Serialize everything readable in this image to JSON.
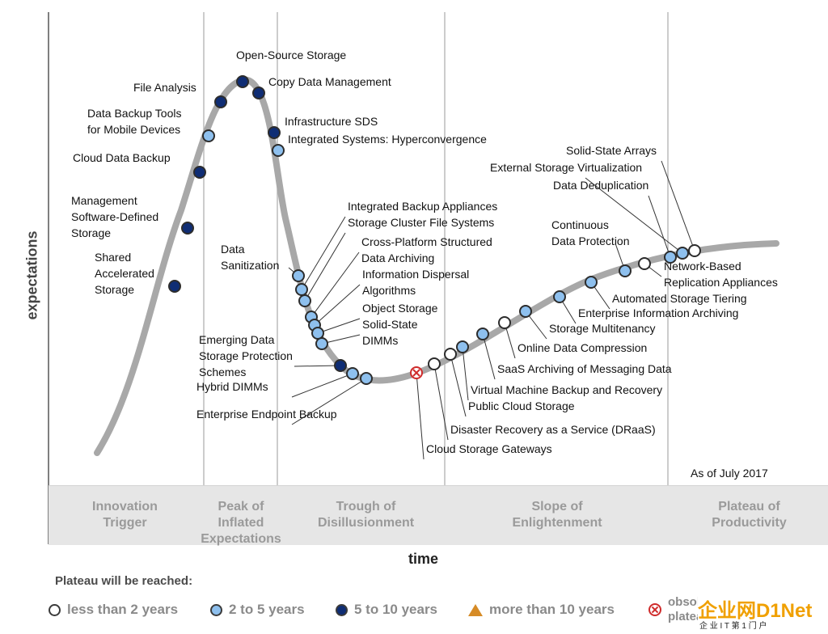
{
  "phases": [
    "Innovation\nTrigger",
    "Peak of\nInflated\nExpectations",
    "Trough of\nDisillusionment",
    "Slope of\nEnlightenment",
    "Plateau of\nProductivity"
  ],
  "axes": {
    "x": "time",
    "y": "expectations"
  },
  "as_of": "As of July 2017",
  "legend": {
    "title": "Plateau will be reached:",
    "items": [
      {
        "label": "less than 2 years",
        "kind": "white"
      },
      {
        "label": "2 to 5 years",
        "kind": "light"
      },
      {
        "label": "5 to 10 years",
        "kind": "dark"
      },
      {
        "label": "more than 10 years",
        "kind": "triangle"
      },
      {
        "label": "obsolete before plateau",
        "kind": "obsolete"
      }
    ]
  },
  "colors": {
    "white": "#ffffff",
    "light": "#8ec0ee",
    "dark": "#0f2d74",
    "curve": "#a8a8a8",
    "text": "#111111",
    "phase": "#e6e6e6"
  },
  "points": [
    {
      "id": "shared-accelerated-storage",
      "label": "Shared\nAccelerated\nStorage",
      "status": "dark"
    },
    {
      "id": "management-sds",
      "label": "Management\nSoftware-Defined\nStorage",
      "status": "dark"
    },
    {
      "id": "cloud-data-backup",
      "label": "Cloud Data Backup",
      "status": "dark"
    },
    {
      "id": "data-backup-tools",
      "label": "Data Backup Tools\nfor Mobile Devices",
      "status": "light"
    },
    {
      "id": "file-analysis",
      "label": "File Analysis",
      "status": "dark"
    },
    {
      "id": "open-source-storage",
      "label": "Open-Source Storage",
      "status": "dark"
    },
    {
      "id": "copy-data-management",
      "label": "Copy Data Management",
      "status": "dark"
    },
    {
      "id": "infrastructure-sds",
      "label": "Infrastructure SDS",
      "status": "dark"
    },
    {
      "id": "integrated-systems",
      "label": "Integrated Systems: Hyperconvergence",
      "status": "light"
    },
    {
      "id": "data-sanitization",
      "label": "Data\nSanitization",
      "status": "light"
    },
    {
      "id": "integrated-backup-appliances",
      "label": "Integrated Backup Appliances",
      "status": "light"
    },
    {
      "id": "storage-cluster-file-systems",
      "label": "Storage Cluster File Systems",
      "status": "light"
    },
    {
      "id": "cross-platform-structured",
      "label": "Cross-Platform Structured\nData Archiving",
      "status": "light"
    },
    {
      "id": "information-dispersal",
      "label": "Information Dispersal\nAlgorithms",
      "status": "light"
    },
    {
      "id": "object-storage",
      "label": "Object Storage",
      "status": "light"
    },
    {
      "id": "solid-state-dimms",
      "label": "Solid-State\nDIMMs",
      "status": "light"
    },
    {
      "id": "emerging-data-storage-protection",
      "label": "Emerging Data\nStorage Protection\nSchemes",
      "status": "dark"
    },
    {
      "id": "hybrid-dimms",
      "label": "Hybrid DIMMs",
      "status": "light"
    },
    {
      "id": "enterprise-endpoint-backup",
      "label": "Enterprise Endpoint Backup",
      "status": "light"
    },
    {
      "id": "cloud-storage-gateways",
      "label": "Cloud Storage Gateways",
      "status": "obsolete"
    },
    {
      "id": "draas",
      "label": "Disaster Recovery as a Service (DRaaS)",
      "status": "white"
    },
    {
      "id": "public-cloud-storage",
      "label": "Public Cloud Storage",
      "status": "white"
    },
    {
      "id": "vm-backup-recovery",
      "label": "Virtual Machine Backup and Recovery",
      "status": "light"
    },
    {
      "id": "saas-archiving",
      "label": "SaaS Archiving of Messaging Data",
      "status": "light"
    },
    {
      "id": "online-data-compression",
      "label": "Online Data Compression",
      "status": "white"
    },
    {
      "id": "storage-multitenancy",
      "label": "Storage Multitenancy",
      "status": "light"
    },
    {
      "id": "enterprise-information-archiving",
      "label": "Enterprise Information Archiving",
      "status": "light"
    },
    {
      "id": "automated-storage-tiering",
      "label": "Automated Storage Tiering",
      "status": "light"
    },
    {
      "id": "continuous-data-protection",
      "label": "Continuous\nData Protection",
      "status": "light"
    },
    {
      "id": "network-based-replication",
      "label": "Network-Based\nReplication Appliances",
      "status": "white"
    },
    {
      "id": "data-deduplication",
      "label": "Data Deduplication",
      "status": "light"
    },
    {
      "id": "external-storage-virtualization",
      "label": "External Storage Virtualization",
      "status": "light"
    },
    {
      "id": "solid-state-arrays",
      "label": "Solid-State Arrays",
      "status": "white"
    }
  ],
  "watermark": {
    "text": "企业网D1Net",
    "subtext": "企 业 I T 第 1 门 户"
  }
}
